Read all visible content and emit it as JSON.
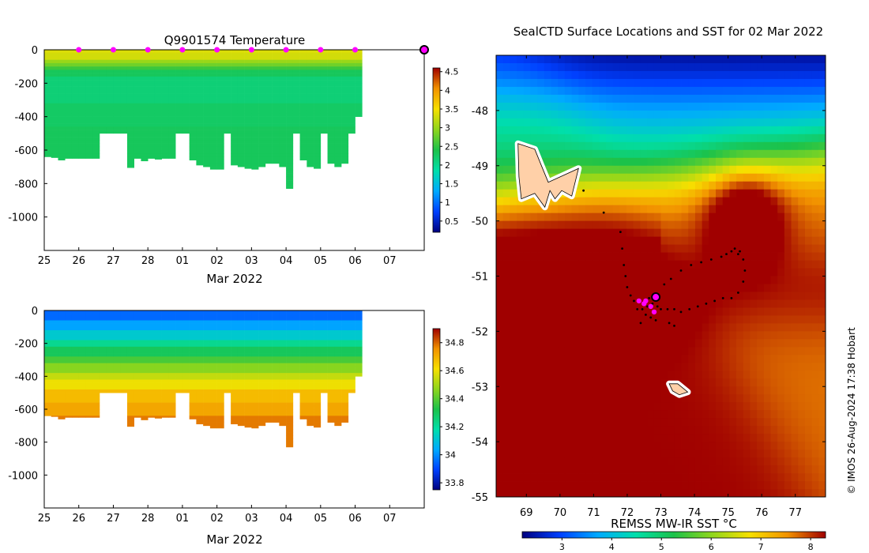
{
  "chart_data": [
    {
      "id": "temperature",
      "type": "heatmap",
      "title": "Q9901574  Temperature",
      "xlabel": "Mar 2022",
      "ylabel": "",
      "xtick_labels": [
        "25",
        "26",
        "27",
        "28",
        "01",
        "02",
        "03",
        "04",
        "05",
        "06",
        "07"
      ],
      "ylim": [
        -1200,
        0
      ],
      "yticks": [
        0,
        -200,
        -400,
        -600,
        -800,
        -1000
      ],
      "ytick_labels": [
        "0",
        "-200",
        "-400",
        "-600",
        "-800",
        "-1000"
      ],
      "profile_days": [
        25.0,
        25.2,
        25.4,
        25.6,
        25.8,
        26.0,
        26.2,
        26.4,
        26.6,
        26.8,
        27.0,
        27.2,
        27.4,
        27.6,
        27.8,
        28.0,
        28.2,
        28.4,
        28.6,
        28.8,
        29.0,
        29.2,
        29.4,
        29.6,
        29.8,
        30.0,
        30.2,
        30.4,
        30.6,
        30.8,
        31.0,
        31.2,
        31.4,
        31.6,
        31.8,
        32.0,
        32.2,
        32.4,
        32.6,
        32.8,
        33.0,
        33.2,
        33.4,
        33.6,
        33.8,
        34.0
      ],
      "max_depth": [
        -640,
        -645,
        -660,
        -650,
        -650,
        -650,
        -650,
        -650,
        -500,
        -500,
        -500,
        -500,
        -705,
        -650,
        -665,
        -650,
        -655,
        -650,
        -650,
        -500,
        -500,
        -660,
        -690,
        -700,
        -715,
        -715,
        -500,
        -690,
        -700,
        -710,
        -715,
        -700,
        -680,
        -680,
        -700,
        -830,
        -500,
        -660,
        -700,
        -710,
        -500,
        -680,
        -700,
        -680,
        -500,
        -400
      ],
      "daily_markers_x": [
        26,
        27,
        28,
        29,
        30,
        31,
        32,
        33,
        34
      ],
      "marker_depth": 0,
      "current_marker_x": 36,
      "colorbar": {
        "label": "",
        "range": [
          0.2,
          4.6
        ],
        "ticks": [
          0.5,
          1,
          1.5,
          2,
          2.5,
          3,
          3.5,
          4,
          4.5
        ],
        "tick_labels": [
          "0.5",
          "1",
          "1.5",
          "2",
          "2.5",
          "3",
          "3.5",
          "4",
          "4.5"
        ]
      }
    },
    {
      "id": "salinity",
      "type": "heatmap",
      "title": "",
      "xlabel": "Mar 2022",
      "ylabel": "",
      "xtick_labels": [
        "25",
        "26",
        "27",
        "28",
        "01",
        "02",
        "03",
        "04",
        "05",
        "06",
        "07"
      ],
      "ylim": [
        -1200,
        0
      ],
      "yticks": [
        0,
        -200,
        -400,
        -600,
        -800,
        -1000
      ],
      "ytick_labels": [
        "0",
        "-200",
        "-400",
        "-600",
        "-800",
        "-1000"
      ],
      "colorbar": {
        "label": "",
        "range": [
          33.75,
          34.9
        ],
        "ticks": [
          33.8,
          34,
          34.2,
          34.4,
          34.6,
          34.8
        ],
        "tick_labels": [
          "33.8",
          "34",
          "34.2",
          "34.4",
          "34.6",
          "34.8"
        ]
      }
    },
    {
      "id": "sst_map",
      "type": "heatmap",
      "title": "SealCTD Surface Locations and SST for 02 Mar 2022",
      "xlabel": "",
      "ylabel": "",
      "xlim": [
        68.1,
        77.9
      ],
      "ylim": [
        -55.0,
        -47.0
      ],
      "xticks": [
        69,
        70,
        71,
        72,
        73,
        74,
        75,
        76,
        77
      ],
      "xtick_labels": [
        "69",
        "70",
        "71",
        "72",
        "73",
        "74",
        "75",
        "76",
        "77"
      ],
      "yticks": [
        -48,
        -49,
        -50,
        -51,
        -52,
        -53,
        -54,
        -55
      ],
      "ytick_labels": [
        "-48",
        "-49",
        "-50",
        "-51",
        "-52",
        "-53",
        "-54",
        "-55"
      ],
      "colorbar": {
        "label": "REMSS MW-IR SST °C",
        "range": [
          2.2,
          8.3
        ],
        "ticks": [
          3,
          4,
          5,
          6,
          7,
          8
        ],
        "tick_labels": [
          "3",
          "4",
          "5",
          "6",
          "7",
          "8"
        ]
      },
      "seal_positions": [
        {
          "lon": 72.35,
          "lat": -51.45
        },
        {
          "lon": 72.5,
          "lat": -51.5
        },
        {
          "lon": 72.6,
          "lat": -51.55
        },
        {
          "lon": 72.75,
          "lat": -51.5
        },
        {
          "lon": 72.2,
          "lat": -51.45
        },
        {
          "lon": 72.8,
          "lat": -51.65
        },
        {
          "lon": 72.45,
          "lat": -51.6
        },
        {
          "lon": 72.9,
          "lat": -51.55
        },
        {
          "lon": 72.65,
          "lat": -51.4
        },
        {
          "lon": 72.3,
          "lat": -51.6
        },
        {
          "lon": 72.55,
          "lat": -51.7
        },
        {
          "lon": 72.7,
          "lat": -51.75
        },
        {
          "lon": 72.1,
          "lat": -51.35
        },
        {
          "lon": 72.0,
          "lat": -51.2
        },
        {
          "lon": 71.95,
          "lat": -51.0
        },
        {
          "lon": 71.9,
          "lat": -50.8
        },
        {
          "lon": 71.85,
          "lat": -50.5
        },
        {
          "lon": 71.8,
          "lat": -50.2
        },
        {
          "lon": 71.3,
          "lat": -49.85
        },
        {
          "lon": 70.7,
          "lat": -49.45
        },
        {
          "lon": 73.0,
          "lat": -51.6
        },
        {
          "lon": 73.2,
          "lat": -51.6
        },
        {
          "lon": 73.4,
          "lat": -51.6
        },
        {
          "lon": 73.6,
          "lat": -51.65
        },
        {
          "lon": 73.85,
          "lat": -51.6
        },
        {
          "lon": 74.1,
          "lat": -51.55
        },
        {
          "lon": 74.35,
          "lat": -51.5
        },
        {
          "lon": 74.6,
          "lat": -51.45
        },
        {
          "lon": 74.85,
          "lat": -51.4
        },
        {
          "lon": 75.1,
          "lat": -51.4
        },
        {
          "lon": 75.3,
          "lat": -51.3
        },
        {
          "lon": 75.45,
          "lat": -51.1
        },
        {
          "lon": 75.5,
          "lat": -50.9
        },
        {
          "lon": 75.45,
          "lat": -50.7
        },
        {
          "lon": 75.3,
          "lat": -50.6
        },
        {
          "lon": 75.1,
          "lat": -50.55
        },
        {
          "lon": 74.95,
          "lat": -50.6
        },
        {
          "lon": 75.2,
          "lat": -50.5
        },
        {
          "lon": 75.35,
          "lat": -50.55
        },
        {
          "lon": 74.8,
          "lat": -50.65
        },
        {
          "lon": 74.5,
          "lat": -50.7
        },
        {
          "lon": 74.2,
          "lat": -50.75
        },
        {
          "lon": 73.9,
          "lat": -50.8
        },
        {
          "lon": 73.6,
          "lat": -50.9
        },
        {
          "lon": 73.3,
          "lat": -51.05
        },
        {
          "lon": 73.1,
          "lat": -51.15
        },
        {
          "lon": 73.25,
          "lat": -51.85
        },
        {
          "lon": 73.4,
          "lat": -51.9
        },
        {
          "lon": 72.85,
          "lat": -51.8
        },
        {
          "lon": 72.4,
          "lat": -51.85
        }
      ],
      "recent_positions": [
        {
          "lon": 72.35,
          "lat": -51.45
        },
        {
          "lon": 72.55,
          "lat": -51.45
        },
        {
          "lon": 72.7,
          "lat": -51.55
        },
        {
          "lon": 72.8,
          "lat": -51.65
        },
        {
          "lon": 72.5,
          "lat": -51.5
        }
      ],
      "current_position": {
        "lon": 72.85,
        "lat": -51.38
      },
      "islands": [
        {
          "name": "Kerguelen",
          "coords": [
            [
              68.75,
              -48.6
            ],
            [
              69.25,
              -48.7
            ],
            [
              69.45,
              -49.0
            ],
            [
              69.65,
              -49.3
            ],
            [
              70.55,
              -49.05
            ],
            [
              70.35,
              -49.55
            ],
            [
              70.05,
              -49.45
            ],
            [
              69.85,
              -49.6
            ],
            [
              69.7,
              -49.45
            ],
            [
              69.55,
              -49.75
            ],
            [
              69.25,
              -49.5
            ],
            [
              68.85,
              -49.6
            ],
            [
              68.78,
              -49.2
            ]
          ]
        },
        {
          "name": "Heard Island",
          "coords": [
            [
              73.25,
              -52.95
            ],
            [
              73.5,
              -52.95
            ],
            [
              73.8,
              -53.1
            ],
            [
              73.55,
              -53.15
            ],
            [
              73.35,
              -53.08
            ]
          ]
        }
      ]
    }
  ],
  "credit": "© IMOS 26-Aug-2024 17:38 Hobart"
}
